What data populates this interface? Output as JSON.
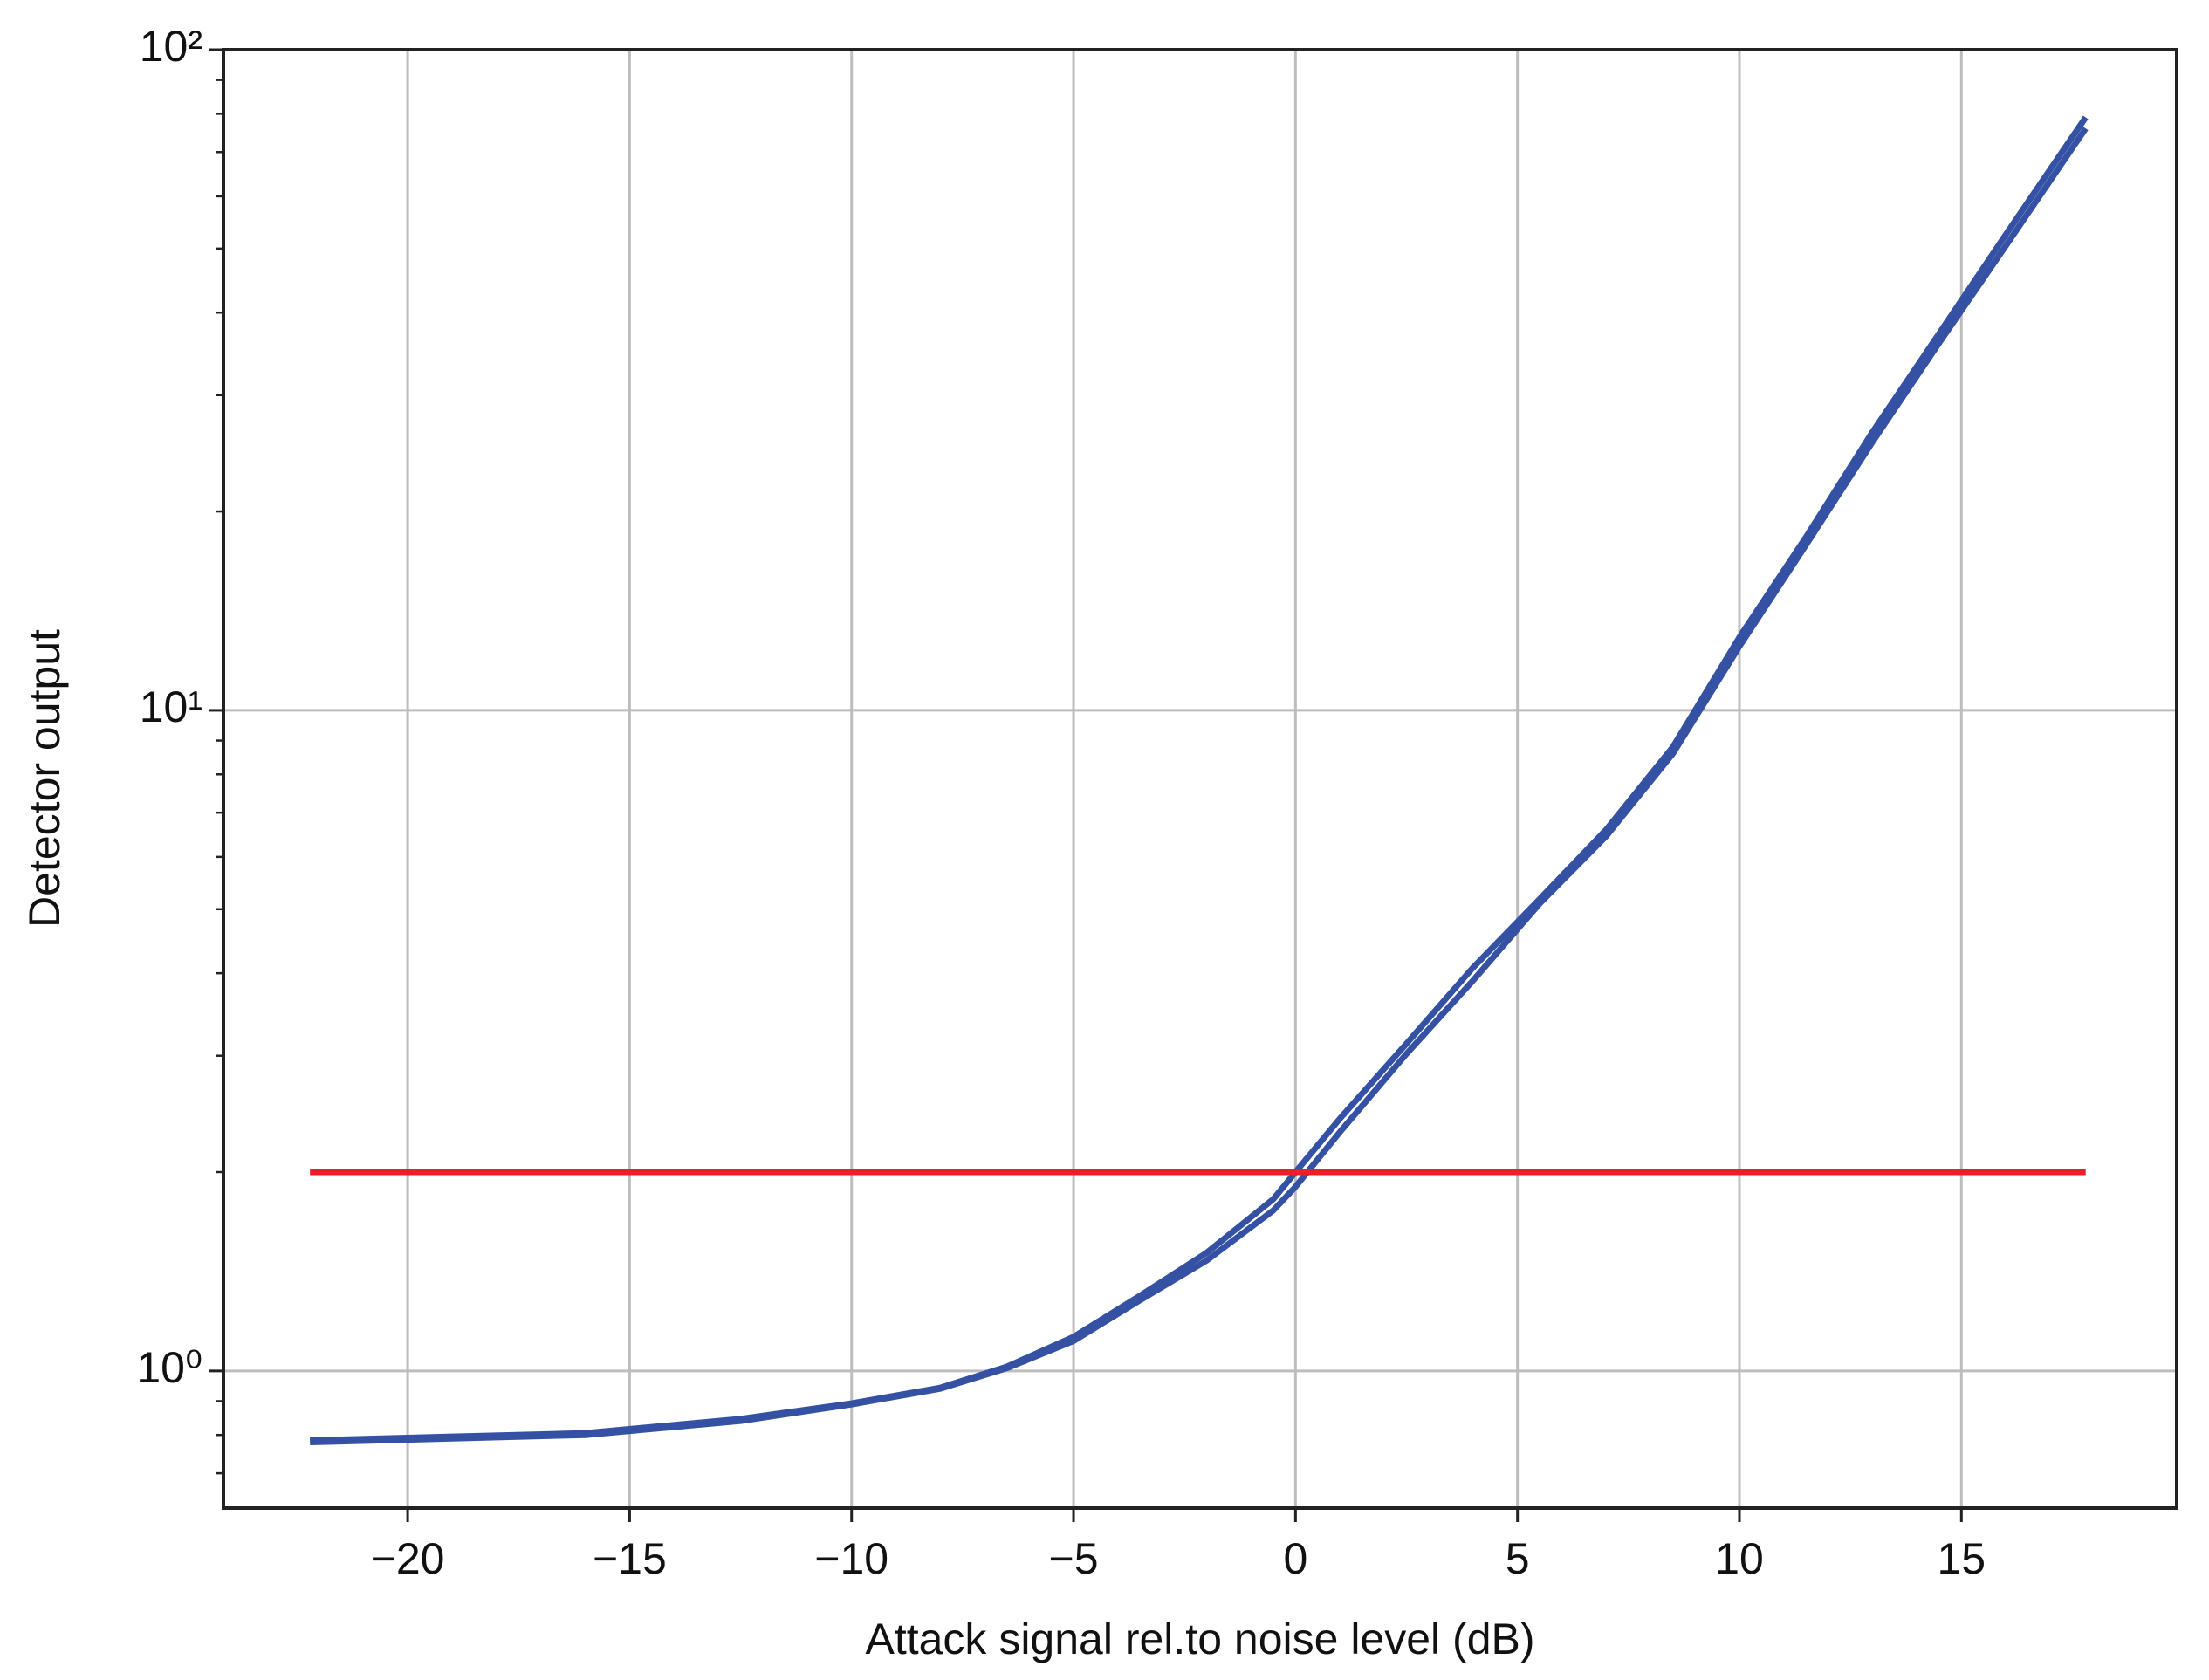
{
  "chart_data": {
    "type": "line",
    "x_label": "Attack signal rel.to noise level (dB)",
    "y_label": "Detector output",
    "x": [
      -22.2,
      -16,
      -12.5,
      -10,
      -8,
      -6.5,
      -5,
      -3.5,
      -2,
      -0.5,
      0,
      1,
      2.5,
      4,
      5.5,
      7,
      8.5,
      10,
      11.5,
      13,
      14.5,
      16,
      17.8
    ],
    "series": [
      {
        "color": "#3451a3",
        "values": [
          0.785,
          0.805,
          0.846,
          0.893,
          0.943,
          1.015,
          1.126,
          1.3,
          1.51,
          1.82,
          2.0,
          2.41,
          3.13,
          4.08,
          5.18,
          6.6,
          8.8,
          12.9,
          18.3,
          26.4,
          37.2,
          52.5,
          79
        ]
      },
      {
        "color": "#3451a3",
        "values": [
          0.78,
          0.8,
          0.84,
          0.89,
          0.94,
          1.01,
          1.11,
          1.28,
          1.47,
          1.75,
          1.9,
          2.3,
          3.02,
          3.9,
          5.1,
          6.45,
          8.6,
          12.5,
          17.8,
          25.5,
          36,
          50.5,
          76
        ]
      }
    ],
    "threshold": {
      "color": "#e8202a",
      "x": [
        -22.2,
        17.8
      ],
      "values": [
        2,
        2
      ]
    },
    "xlim": [
      -24.15,
      19.85
    ],
    "ylim": [
      0.62,
      100
    ],
    "log_y": true,
    "grid": true,
    "xticks": [
      {
        "value": -20,
        "label": "−20"
      },
      {
        "value": -15,
        "label": "−15"
      },
      {
        "value": -10,
        "label": "−10"
      },
      {
        "value": -5,
        "label": "−5"
      },
      0,
      5,
      10,
      15
    ],
    "yticks": [
      {
        "value": 1,
        "label": "10⁰"
      },
      {
        "value": 10,
        "label": "10¹"
      },
      {
        "value": 100,
        "label": "10²"
      }
    ],
    "minor_yticks": [
      0.7,
      0.8,
      0.9,
      2,
      3,
      4,
      5,
      6,
      7,
      8,
      9,
      20,
      30,
      40,
      50,
      60,
      70,
      80,
      90
    ]
  }
}
